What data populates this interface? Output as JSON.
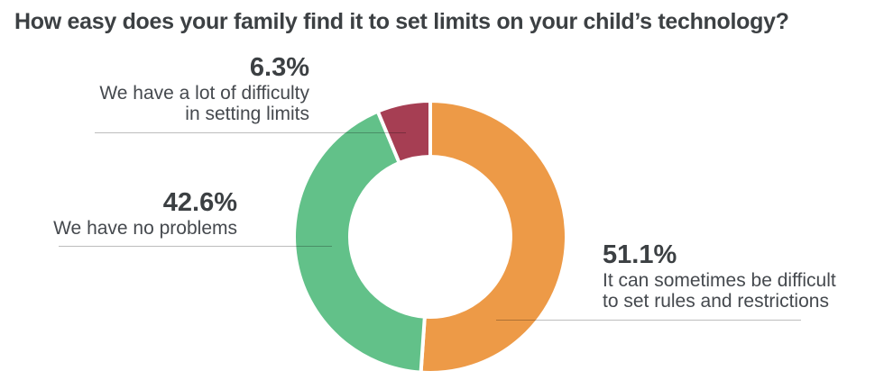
{
  "title": "How easy does your family find it to set limits on your child’s technology?",
  "colors": {
    "orange": "#ED9A47",
    "green": "#62C189",
    "maroon": "#A63E53",
    "title_text": "#3C4043",
    "label_text": "#45494E",
    "leader_line": "#BDBDBD",
    "background": "#FFFFFF"
  },
  "chart_data": {
    "type": "pie",
    "subtype": "donut",
    "title": "How easy does your family find it to set limits on your child’s technology?",
    "units": "%",
    "direction": "clockwise",
    "start_angle_deg": 0,
    "inner_radius_ratio": 0.59,
    "slice_gap_stroke_px": 4,
    "legend_position": "callout-labels",
    "segments": [
      {
        "name": "It can sometimes be difficult to set rules and restrictions",
        "value": 51.1,
        "color": "#ED9A47"
      },
      {
        "name": "We have no problems",
        "value": 42.6,
        "color": "#62C189"
      },
      {
        "name": "We have a lot of difficulty in setting limits",
        "value": 6.3,
        "color": "#A63E53"
      }
    ]
  },
  "callouts": {
    "difficulty": {
      "value": "6.3%",
      "line1": "We have a lot of difficulty",
      "line2": "in setting limits"
    },
    "no_problems": {
      "value": "42.6%",
      "line1": "We have no problems"
    },
    "sometimes": {
      "value": "51.1%",
      "line1": "It can sometimes be difficult",
      "line2": "to set rules and restrictions"
    }
  }
}
